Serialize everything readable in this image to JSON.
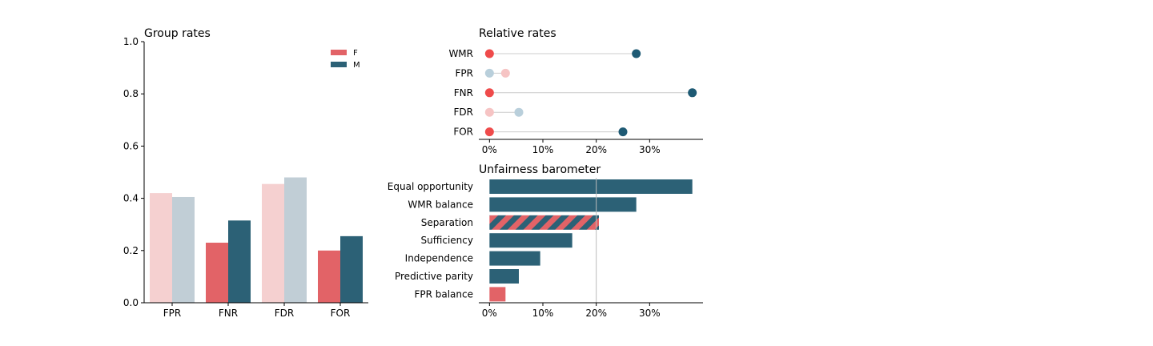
{
  "chart_data": [
    {
      "type": "bar",
      "title": "Group rates",
      "categories": [
        "FPR",
        "FNR",
        "FDR",
        "FOR"
      ],
      "series": [
        {
          "name": "F",
          "values": [
            0.42,
            0.23,
            0.455,
            0.2
          ]
        },
        {
          "name": "M",
          "values": [
            0.405,
            0.315,
            0.48,
            0.255
          ]
        }
      ],
      "highlight": [
        false,
        true,
        false,
        true
      ],
      "ylim": [
        0,
        1.0
      ],
      "yticks": [
        "0.0",
        "0.2",
        "0.4",
        "0.6",
        "0.8",
        "1.0"
      ],
      "legend": "top-right",
      "colors": {
        "F": "#e26367",
        "M": "#2c6176",
        "F_faded": "#f5d0d0",
        "M_faded": "#c1ced6"
      }
    },
    {
      "type": "scatter",
      "title": "Relative rates",
      "categories": [
        "WMR",
        "FPR",
        "FNR",
        "FDR",
        "FOR"
      ],
      "series": [
        {
          "name": "F",
          "values": [
            0,
            3,
            0,
            0,
            0
          ]
        },
        {
          "name": "M",
          "values": [
            27.5,
            0,
            38,
            5.5,
            25
          ]
        }
      ],
      "highlight": [
        true,
        false,
        true,
        false,
        true
      ],
      "xlim": [
        -2,
        40
      ],
      "xticks": [
        "0%",
        "10%",
        "20%",
        "30%"
      ],
      "colors": {
        "F": "#ef4b4b",
        "M": "#1e5a74",
        "F_faded": "#f6c4c4",
        "M_faded": "#b9cfdb"
      }
    },
    {
      "type": "bar",
      "orientation": "horizontal",
      "title": "Unfairness barometer",
      "categories": [
        "Equal opportunity",
        "WMR balance",
        "Separation",
        "Sufficiency",
        "Independence",
        "Predictive parity",
        "FPR balance"
      ],
      "values": [
        38,
        27.5,
        20.5,
        15.5,
        9.5,
        5.5,
        3
      ],
      "bar_style": [
        "M",
        "M",
        "hatched",
        "M",
        "M",
        "M",
        "F"
      ],
      "reference_line": 20,
      "xlim": [
        -2,
        40
      ],
      "xticks": [
        "0%",
        "10%",
        "20%",
        "30%"
      ],
      "colors": {
        "F": "#e26367",
        "M": "#2c6176"
      }
    }
  ]
}
